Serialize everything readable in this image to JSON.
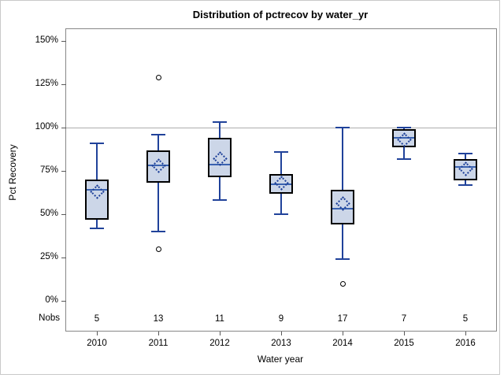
{
  "title": "Distribution of pctrecov by water_yr",
  "y_axis": {
    "label": "Pct Recovery"
  },
  "x_axis": {
    "label": "Water year"
  },
  "nobs_row_label": "Nobs",
  "chart_data": {
    "type": "box",
    "title": "Distribution of pctrecov by water_yr",
    "xlabel": "Water year",
    "ylabel": "Pct Recovery",
    "ylim": [
      0,
      150
    ],
    "y_tick_interval": 25,
    "y_tick_format": "percent",
    "reference_line_y": 100,
    "grid": false,
    "legend": false,
    "categories": [
      "2010",
      "2011",
      "2012",
      "2013",
      "2014",
      "2015",
      "2016"
    ],
    "nobs": [
      5,
      13,
      11,
      9,
      17,
      7,
      5
    ],
    "series": [
      {
        "category": "2010",
        "nobs": 5,
        "whisker_low": 42,
        "q1": 47,
        "median": 64,
        "mean": 63,
        "q3": 70,
        "whisker_high": 91,
        "outliers": []
      },
      {
        "category": "2011",
        "nobs": 13,
        "whisker_low": 40,
        "q1": 68,
        "median": 78,
        "mean": 78,
        "q3": 87,
        "whisker_high": 96,
        "outliers": [
          129,
          30
        ]
      },
      {
        "category": "2012",
        "nobs": 11,
        "whisker_low": 58,
        "q1": 71.5,
        "median": 78.5,
        "mean": 82,
        "q3": 94,
        "whisker_high": 103,
        "outliers": []
      },
      {
        "category": "2013",
        "nobs": 9,
        "whisker_low": 50,
        "q1": 62,
        "median": 67.5,
        "mean": 68,
        "q3": 73,
        "whisker_high": 86,
        "outliers": []
      },
      {
        "category": "2014",
        "nobs": 17,
        "whisker_low": 24,
        "q1": 44,
        "median": 53,
        "mean": 56,
        "q3": 64,
        "whisker_high": 100,
        "outliers": [
          10
        ]
      },
      {
        "category": "2015",
        "nobs": 7,
        "whisker_low": 82,
        "q1": 88.5,
        "median": 94,
        "mean": 93,
        "q3": 99,
        "whisker_high": 100,
        "outliers": []
      },
      {
        "category": "2016",
        "nobs": 5,
        "whisker_low": 67,
        "q1": 69.5,
        "median": 77.5,
        "mean": 76,
        "q3": 82,
        "whisker_high": 85,
        "outliers": []
      }
    ]
  },
  "colors": {
    "box_fill": "#ccd6e8",
    "box_border": "#000000",
    "median": "#3a62b0",
    "whisker": "#20429a",
    "mean_marker": "#20429a",
    "outlier": "#000000",
    "reference_line": "#adadad",
    "axis_frame": "#878787",
    "tick": "#595959",
    "text": "#000000",
    "figure_border": "#c9c9c9",
    "background": "#ffffff"
  }
}
